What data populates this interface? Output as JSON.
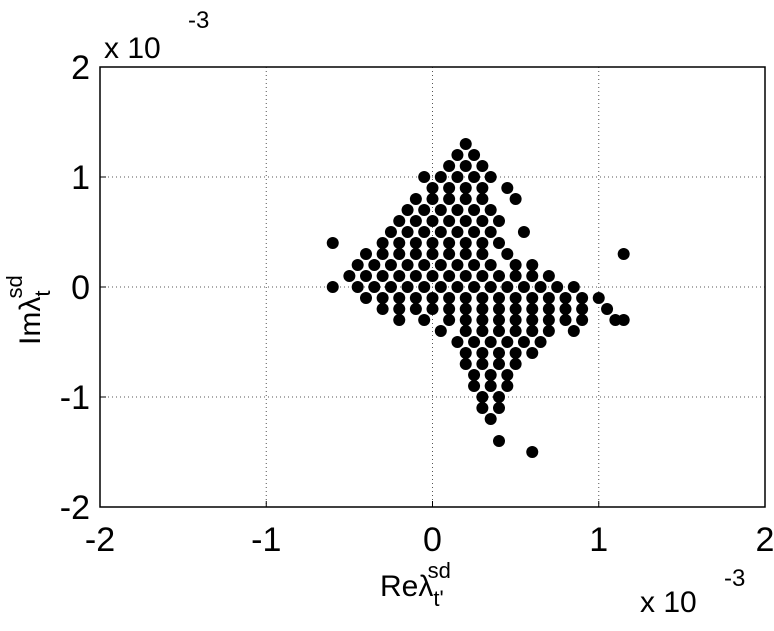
{
  "chart_data": {
    "type": "scatter",
    "x_label": "Reλ",
    "x_label_sub": "t'",
    "x_label_sup": "sd",
    "y_label": "Imλ",
    "y_label_sub": "t",
    "y_label_sup": "sd",
    "x_multiplier": "x 10",
    "x_exponent": "-3",
    "y_multiplier": "x 10",
    "y_exponent": "-3",
    "xlim": [
      -2,
      2
    ],
    "ylim": [
      -2,
      2
    ],
    "xticks": [
      -2,
      -1,
      0,
      1,
      2
    ],
    "yticks": [
      -2,
      -1,
      0,
      1,
      2
    ],
    "grid": true,
    "color": "#000000",
    "x": [
      0.2,
      0.15,
      0.25,
      0.1,
      0.2,
      0.3,
      -0.05,
      0.05,
      0.15,
      0.25,
      0.35,
      0.0,
      0.1,
      0.2,
      0.3,
      0.45,
      -0.1,
      0.0,
      0.1,
      0.2,
      0.3,
      0.5,
      -0.15,
      -0.05,
      0.05,
      0.15,
      0.25,
      0.35,
      -0.2,
      -0.1,
      0,
      0.1,
      0.2,
      0.3,
      0.4,
      -0.25,
      -0.15,
      -0.05,
      0.05,
      0.15,
      0.25,
      0.35,
      0.55,
      -0.3,
      -0.2,
      -0.1,
      0,
      0.1,
      0.2,
      0.3,
      0.4,
      -0.4,
      -0.3,
      -0.2,
      -0.1,
      0,
      0.1,
      0.2,
      0.3,
      0.45,
      -0.45,
      -0.35,
      -0.25,
      -0.15,
      -0.05,
      0.05,
      0.15,
      0.25,
      0.35,
      0.5,
      0.6,
      -0.5,
      -0.4,
      -0.3,
      -0.2,
      -0.1,
      0,
      0.1,
      0.2,
      0.3,
      0.4,
      0.5,
      0.6,
      0.7,
      -0.45,
      -0.35,
      -0.25,
      -0.15,
      -0.05,
      0.05,
      0.15,
      0.25,
      0.35,
      0.45,
      0.55,
      0.65,
      0.75,
      0.85,
      -0.4,
      -0.3,
      -0.2,
      -0.1,
      0,
      0.1,
      0.2,
      0.3,
      0.4,
      0.5,
      0.6,
      0.7,
      0.8,
      0.9,
      1.0,
      -0.3,
      -0.2,
      -0.1,
      0,
      0.1,
      0.2,
      0.3,
      0.4,
      0.5,
      0.6,
      0.7,
      0.8,
      0.9,
      1.05,
      -0.2,
      -0.05,
      0.1,
      0.2,
      0.3,
      0.4,
      0.5,
      0.6,
      0.7,
      0.8,
      0.9,
      1.1,
      0.05,
      0.2,
      0.3,
      0.4,
      0.5,
      0.6,
      0.7,
      0.85,
      0.15,
      0.25,
      0.35,
      0.45,
      0.55,
      0.65,
      0.2,
      0.3,
      0.4,
      0.5,
      0.6,
      0.2,
      0.3,
      0.4,
      0.5,
      0.25,
      0.35,
      0.45,
      0.25,
      0.35,
      0.45,
      0.3,
      0.4,
      0.3,
      0.4,
      0.35,
      0.4,
      1.15,
      1.15,
      -0.6,
      -0.6,
      0.6
    ],
    "values": [
      1.3,
      1.2,
      1.2,
      1.1,
      1.1,
      1.1,
      1.0,
      1.0,
      1.0,
      1.0,
      1.0,
      0.9,
      0.9,
      0.9,
      0.9,
      0.9,
      0.8,
      0.8,
      0.8,
      0.8,
      0.8,
      0.8,
      0.7,
      0.7,
      0.7,
      0.7,
      0.7,
      0.7,
      0.6,
      0.6,
      0.6,
      0.6,
      0.6,
      0.6,
      0.6,
      0.5,
      0.5,
      0.5,
      0.5,
      0.5,
      0.5,
      0.5,
      0.5,
      0.4,
      0.4,
      0.4,
      0.4,
      0.4,
      0.4,
      0.4,
      0.4,
      0.3,
      0.3,
      0.3,
      0.3,
      0.3,
      0.3,
      0.3,
      0.3,
      0.3,
      0.2,
      0.2,
      0.2,
      0.2,
      0.2,
      0.2,
      0.2,
      0.2,
      0.2,
      0.2,
      0.2,
      0.1,
      0.1,
      0.1,
      0.1,
      0.1,
      0.1,
      0.1,
      0.1,
      0.1,
      0.1,
      0.1,
      0.1,
      0.1,
      0,
      0,
      0,
      0,
      0,
      0,
      0,
      0,
      0,
      0,
      0,
      0,
      0,
      0,
      -0.1,
      -0.1,
      -0.1,
      -0.1,
      -0.1,
      -0.1,
      -0.1,
      -0.1,
      -0.1,
      -0.1,
      -0.1,
      -0.1,
      -0.1,
      -0.1,
      -0.1,
      -0.2,
      -0.2,
      -0.2,
      -0.2,
      -0.2,
      -0.2,
      -0.2,
      -0.2,
      -0.2,
      -0.2,
      -0.2,
      -0.2,
      -0.2,
      -0.2,
      -0.3,
      -0.3,
      -0.3,
      -0.3,
      -0.3,
      -0.3,
      -0.3,
      -0.3,
      -0.3,
      -0.3,
      -0.3,
      -0.3,
      -0.4,
      -0.4,
      -0.4,
      -0.4,
      -0.4,
      -0.4,
      -0.4,
      -0.4,
      -0.5,
      -0.5,
      -0.5,
      -0.5,
      -0.5,
      -0.5,
      -0.6,
      -0.6,
      -0.6,
      -0.6,
      -0.6,
      -0.7,
      -0.7,
      -0.7,
      -0.7,
      -0.8,
      -0.8,
      -0.8,
      -0.9,
      -0.9,
      -0.9,
      -1.0,
      -1.0,
      -1.1,
      -1.1,
      -1.2,
      -1.4,
      -0.3,
      0.3,
      0.4,
      0.0,
      -1.5
    ]
  }
}
